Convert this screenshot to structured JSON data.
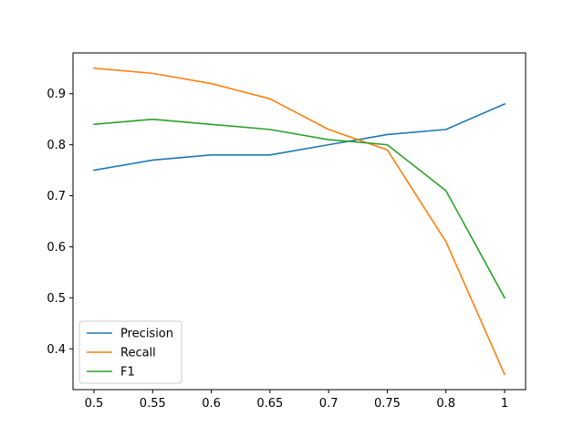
{
  "chart_data": {
    "type": "line",
    "title": "",
    "xlabel": "",
    "ylabel": "",
    "x": [
      0.5,
      0.55,
      0.6,
      0.65,
      0.7,
      0.75,
      0.8,
      1.0
    ],
    "x_tick_labels": [
      "0.5",
      "0.55",
      "0.6",
      "0.65",
      "0.7",
      "0.75",
      "0.8",
      "1"
    ],
    "y_ticks": [
      0.4,
      0.5,
      0.6,
      0.7,
      0.8,
      0.9
    ],
    "y_tick_labels": [
      "0.4",
      "0.5",
      "0.6",
      "0.7",
      "0.8",
      "0.9"
    ],
    "ylim": [
      0.32,
      0.98
    ],
    "grid": false,
    "legend_position": "lower-left",
    "x_axis_note": "x positions are evenly spaced categories (0.8 and 1 are adjacent)",
    "series": [
      {
        "name": "Precision",
        "color": "#1f77b4",
        "values": [
          0.75,
          0.77,
          0.78,
          0.78,
          0.8,
          0.82,
          0.83,
          0.88
        ]
      },
      {
        "name": "Recall",
        "color": "#ff7f0e",
        "values": [
          0.95,
          0.94,
          0.92,
          0.89,
          0.83,
          0.79,
          0.61,
          0.35
        ]
      },
      {
        "name": "F1",
        "color": "#2ca02c",
        "values": [
          0.84,
          0.85,
          0.84,
          0.83,
          0.81,
          0.8,
          0.71,
          0.5
        ]
      }
    ]
  }
}
